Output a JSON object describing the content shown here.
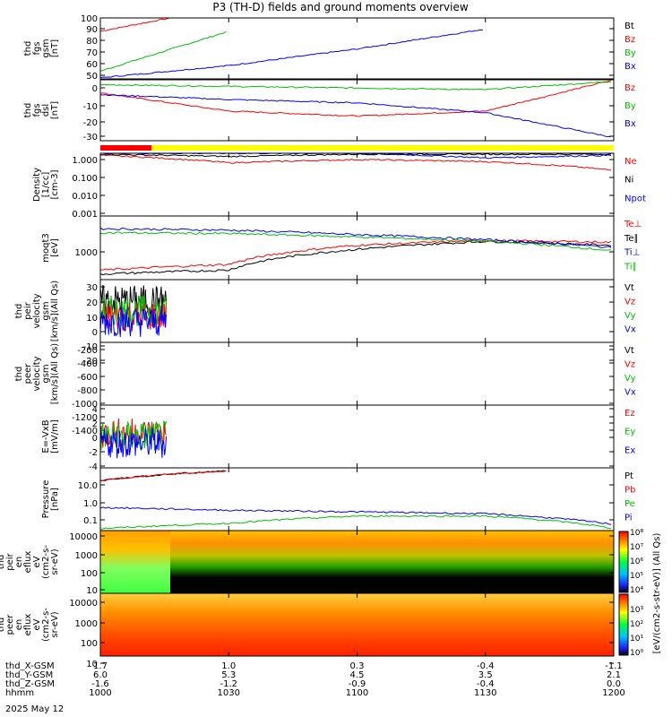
{
  "title": "P3 (TH-D) fields and ground moments overview",
  "date": "2025 May 12",
  "colorbar_label": "[eV/(cm2-s-str-eV)] (All Qs)",
  "colorbar_ticks": [
    "10⁸",
    "10⁷",
    "10⁶",
    "10⁵",
    "10⁴",
    "10³",
    "10²",
    "10¹",
    "10⁰"
  ],
  "footer": {
    "row_labels": [
      "thd_X-GSM",
      "thd_Y-GSM",
      "thd_Z-GSM",
      "hhmm"
    ],
    "columns": [
      {
        "x": [
          "1.7",
          "6.0",
          "-1.6",
          "1000"
        ]
      },
      {
        "x": [
          "1.0",
          "5.3",
          "-1.2",
          "1030"
        ]
      },
      {
        "x": [
          "0.3",
          "4.5",
          "-0.9",
          "1100"
        ]
      },
      {
        "x": [
          "-0.4",
          "3.5",
          "-0.4",
          "1130"
        ]
      },
      {
        "x": [
          "-1.1",
          "2.1",
          "0.0",
          "1200"
        ]
      }
    ]
  },
  "panels": [
    {
      "id": "p1",
      "ylabel": [
        "thd",
        "fgs",
        "gsm",
        "[nT]"
      ],
      "ticks": [
        "100",
        "90",
        "80",
        "70",
        "60",
        "50"
      ],
      "legend": [
        {
          "t": "Bt",
          "c": "#000000"
        },
        {
          "t": "Bz",
          "c": "#ff0000"
        },
        {
          "t": "By",
          "c": "#00c000"
        },
        {
          "t": "Bx",
          "c": "#0000ff"
        }
      ]
    },
    {
      "id": "p2",
      "ylabel": [
        "thd",
        "fgs",
        "dsl",
        "[nT]"
      ],
      "ticks": [
        "0",
        "-10",
        "-20",
        "-30"
      ],
      "legend": [
        {
          "t": "Bz",
          "c": "#ff0000"
        },
        {
          "t": "By",
          "c": "#00c000"
        },
        {
          "t": "Bx",
          "c": "#0000ff"
        }
      ]
    },
    {
      "id": "p3",
      "ylabel": [
        "Density",
        "[1/cc]",
        "[cm-3]"
      ],
      "ticks": [
        "1.000",
        "0.100",
        "0.010",
        "0.001"
      ],
      "legend": [
        {
          "t": "Ne",
          "c": "#ff0000"
        },
        {
          "t": "Ni",
          "c": "#000000"
        },
        {
          "t": "Npot",
          "c": "#0000ff"
        }
      ]
    },
    {
      "id": "p4",
      "ylabel": [
        "moqt3",
        "[eV]"
      ],
      "ticks": [
        "1000"
      ],
      "legend": [
        {
          "t": "Te⊥",
          "c": "#ff0000"
        },
        {
          "t": "Te∥",
          "c": "#000000"
        },
        {
          "t": "Ti⊥",
          "c": "#0000ff"
        },
        {
          "t": "Ti∥",
          "c": "#00c000"
        }
      ]
    },
    {
      "id": "p5",
      "ylabel": [
        "thd",
        "peir",
        "velocity",
        "gsm",
        "[km/s](All Qs)"
      ],
      "ticks": [
        "30",
        "20",
        "10",
        "0",
        "-10",
        "-20"
      ],
      "legend": [
        {
          "t": "Vt",
          "c": "#000000"
        },
        {
          "t": "Vz",
          "c": "#ff0000"
        },
        {
          "t": "Vy",
          "c": "#00c000"
        },
        {
          "t": "Vx",
          "c": "#0000ff"
        }
      ]
    },
    {
      "id": "p6",
      "ylabel": [
        "thd",
        "peer",
        "velocity",
        "gsm",
        "[km/s](All Qs)"
      ],
      "ticks": [
        "-200",
        "-400",
        "-600",
        "-800",
        "-1000",
        "-1200",
        "-1400"
      ],
      "legend": [
        {
          "t": "Vt",
          "c": "#000000"
        },
        {
          "t": "Vz",
          "c": "#ff0000"
        },
        {
          "t": "Vy",
          "c": "#00c000"
        },
        {
          "t": "Vx",
          "c": "#0000ff"
        }
      ]
    },
    {
      "id": "p7",
      "ylabel": [
        "E=-VxB",
        "[mV/m]"
      ],
      "ticks": [
        "4",
        "2",
        "0",
        "-2",
        "-4"
      ],
      "legend": [
        {
          "t": "Ez",
          "c": "#ff0000"
        },
        {
          "t": "Ey",
          "c": "#00c000"
        },
        {
          "t": "Ex",
          "c": "#0000ff"
        }
      ]
    },
    {
      "id": "p8",
      "ylabel": [
        "Pressure",
        "[nPa]"
      ],
      "ticks": [
        "10.0",
        "1.0",
        "0.1"
      ],
      "legend": [
        {
          "t": "Pt",
          "c": "#000000"
        },
        {
          "t": "Pb",
          "c": "#ff0000"
        },
        {
          "t": "Pe",
          "c": "#00c000"
        },
        {
          "t": "Pi",
          "c": "#0000ff"
        }
      ]
    },
    {
      "id": "p9",
      "ylabel": [
        "thd",
        "peir",
        "en",
        "eflux",
        "eV",
        "(cm2-s-",
        "sr-eV)"
      ],
      "ticks": [
        "10000",
        "1000",
        "100",
        "10"
      ],
      "legend": []
    },
    {
      "id": "p10",
      "ylabel": [
        "thd",
        "peer",
        "en",
        "eflux",
        "eV",
        "(cm2-s-",
        "sr-eV)"
      ],
      "ticks": [
        "10000",
        "1000",
        "100",
        "10"
      ],
      "legend": []
    }
  ],
  "chart_data": {
    "type": "line",
    "title": "P3 (TH-D) fields and ground moments overview",
    "x_axis": "hhmm",
    "x_ticks": [
      "1000",
      "1030",
      "1100",
      "1130",
      "1200"
    ],
    "subplots": [
      {
        "ylabel": "thd fgs gsm [nT]",
        "ylim": [
          45,
          100
        ],
        "series": [
          {
            "name": "Bz",
            "values_at_ticks": [
              88,
              110,
              null,
              null,
              null
            ]
          },
          {
            "name": "By",
            "values_at_ticks": [
              52,
              88,
              null,
              null,
              null
            ]
          },
          {
            "name": "Bx",
            "values_at_ticks": [
              46,
              57,
              72,
              90,
              null
            ]
          }
        ]
      },
      {
        "ylabel": "thd fgs dsl [nT]",
        "ylim": [
          -35,
          2
        ],
        "series": [
          {
            "name": "Bz",
            "values_at_ticks": [
              -6,
              -17,
              -20,
              -17,
              2
            ]
          },
          {
            "name": "By",
            "values_at_ticks": [
              -1,
              -2,
              -3,
              -4,
              1
            ]
          },
          {
            "name": "Bx",
            "values_at_ticks": [
              -7,
              -10,
              -12,
              -18,
              -33
            ]
          }
        ]
      },
      {
        "ylabel": "Density [1/cc]",
        "scale": "log",
        "ylim": [
          0.001,
          1.0
        ],
        "series": [
          {
            "name": "Ne",
            "values_at_ticks": [
              0.8,
              0.35,
              0.5,
              0.4,
              0.15
            ]
          },
          {
            "name": "Ni",
            "values_at_ticks": [
              0.9,
              0.7,
              0.9,
              0.9,
              0.9
            ]
          },
          {
            "name": "Npot",
            "values_at_ticks": [
              1.0,
              1.0,
              1.0,
              0.6,
              0.8
            ]
          }
        ]
      },
      {
        "ylabel": "moqt3 [eV]",
        "scale": "log",
        "series": [
          {
            "name": "Te⊥",
            "values_at_ticks": [
              200,
              300,
              1200,
              1700,
              1500
            ]
          },
          {
            "name": "Te∥",
            "values_at_ticks": [
              150,
              200,
              900,
              1600,
              1200
            ]
          },
          {
            "name": "Ti⊥",
            "values_at_ticks": [
              4000,
              3600,
              2600,
              1800,
              1000
            ]
          },
          {
            "name": "Ti∥",
            "values_at_ticks": [
              3000,
              2800,
              2200,
              1600,
              800
            ]
          }
        ]
      },
      {
        "ylabel": "thd peir velocity gsm [km/s](All Qs)",
        "ylim": [
          -25,
          35
        ],
        "series": [
          {
            "name": "Vt",
            "values_at_ticks": [
              15,
              null,
              null,
              null,
              null
            ]
          },
          {
            "name": "Vz",
            "values_at_ticks": [
              0,
              null,
              null,
              null,
              null
            ]
          },
          {
            "name": "Vy",
            "values_at_ticks": [
              5,
              null,
              null,
              null,
              null
            ]
          },
          {
            "name": "Vx",
            "values_at_ticks": [
              -5,
              null,
              null,
              null,
              null
            ]
          }
        ]
      },
      {
        "ylabel": "thd peer velocity gsm [km/s](All Qs)",
        "ylim": [
          -1500,
          -100
        ],
        "series": []
      },
      {
        "ylabel": "E=-VxB [mV/m]",
        "ylim": [
          -5,
          5
        ],
        "series": [
          {
            "name": "Ez",
            "values_at_ticks": [
              0.5,
              null,
              null,
              null,
              null
            ]
          },
          {
            "name": "Ey",
            "values_at_ticks": [
              0,
              null,
              null,
              null,
              null
            ]
          },
          {
            "name": "Ex",
            "values_at_ticks": [
              -1,
              null,
              null,
              null,
              null
            ]
          }
        ]
      },
      {
        "ylabel": "Pressure [nPa]",
        "scale": "log",
        "ylim": [
          0.05,
          20
        ],
        "series": [
          {
            "name": "Pt",
            "values_at_ticks": [
              6,
              15,
              null,
              null,
              null
            ]
          },
          {
            "name": "Pb",
            "values_at_ticks": [
              6,
              15,
              null,
              null,
              null
            ]
          },
          {
            "name": "Pe",
            "values_at_ticks": [
              0.06,
              0.1,
              0.2,
              0.2,
              0.06
            ]
          },
          {
            "name": "Pi",
            "values_at_ticks": [
              0.45,
              0.35,
              0.3,
              0.25,
              0.09
            ]
          }
        ]
      },
      {
        "ylabel": "thd peir en eflux",
        "type": "heatmap",
        "scale": "log",
        "ylim": [
          5,
          20000
        ]
      },
      {
        "ylabel": "thd peer en eflux",
        "type": "heatmap",
        "scale": "log",
        "ylim": [
          5,
          20000
        ]
      }
    ],
    "status_bar": {
      "segments": [
        {
          "color": "#ff0000",
          "from": "1000",
          "to": "1012"
        },
        {
          "color": "#ffff00",
          "from": "1012",
          "to": "1200"
        }
      ]
    }
  }
}
